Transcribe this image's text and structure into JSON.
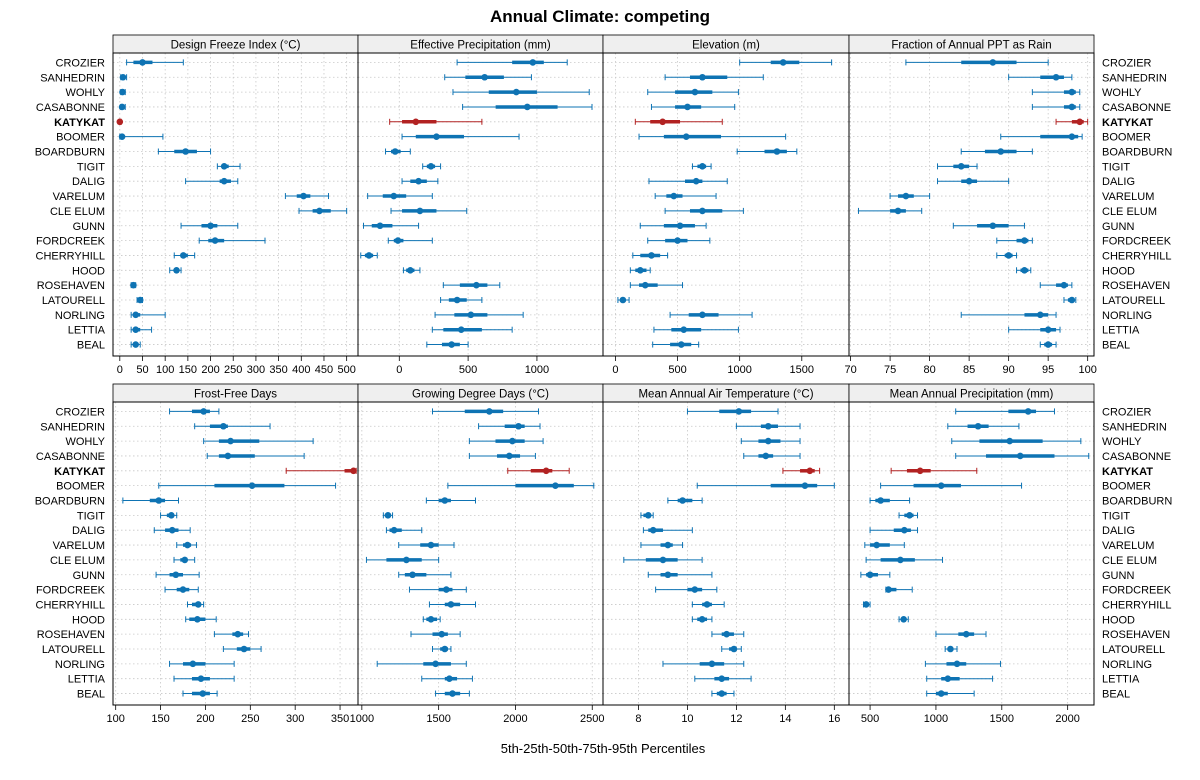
{
  "title": "Annual Climate: competing",
  "xlabel": "5th-25th-50th-75th-95th Percentiles",
  "colors": {
    "normal": "#0e73b3",
    "highlight": "#b22222",
    "strip": "#efefef",
    "grid": "#c8c8c8"
  },
  "series": [
    "CROZIER",
    "SANHEDRIN",
    "WOHLY",
    "CASABONNE",
    "KATYKAT",
    "BOOMER",
    "BOARDBURN",
    "TIGIT",
    "DALIG",
    "VARELUM",
    "CLE ELUM",
    "GUNN",
    "FORDCREEK",
    "CHERRYHILL",
    "HOOD",
    "ROSEHAVEN",
    "LATOURELL",
    "NORLING",
    "LETTIA",
    "BEAL"
  ],
  "highlight": "KATYKAT",
  "chart_data": [
    {
      "type": "percentile-dotplot",
      "title": "Design Freeze Index (°C)",
      "xlim": [
        -15,
        525
      ],
      "ticks": [
        0,
        50,
        100,
        150,
        200,
        250,
        300,
        350,
        400,
        450,
        500
      ],
      "percentiles": [
        [
          15,
          30,
          50,
          72,
          140
        ],
        [
          2,
          4,
          7,
          10,
          15
        ],
        [
          2,
          4,
          6,
          8,
          12
        ],
        [
          2,
          3,
          5,
          8,
          12
        ],
        [
          0,
          0,
          0,
          1,
          3
        ],
        [
          0,
          2,
          5,
          10,
          95
        ],
        [
          85,
          120,
          145,
          170,
          200
        ],
        [
          215,
          225,
          230,
          240,
          265
        ],
        [
          145,
          220,
          230,
          245,
          260
        ],
        [
          365,
          390,
          405,
          420,
          460
        ],
        [
          395,
          425,
          440,
          465,
          500
        ],
        [
          135,
          180,
          200,
          215,
          260
        ],
        [
          175,
          195,
          210,
          230,
          320
        ],
        [
          120,
          135,
          140,
          150,
          165
        ],
        [
          110,
          120,
          125,
          130,
          135
        ],
        [
          25,
          27,
          30,
          32,
          35
        ],
        [
          38,
          42,
          45,
          48,
          50
        ],
        [
          25,
          30,
          35,
          45,
          100
        ],
        [
          25,
          30,
          35,
          45,
          70
        ],
        [
          25,
          30,
          35,
          38,
          45
        ]
      ]
    },
    {
      "type": "percentile-dotplot",
      "title": "Effective Precipitation (mm)",
      "xlim": [
        -300,
        1480
      ],
      "ticks": [
        0,
        500,
        1000
      ],
      "percentiles": [
        [
          420,
          820,
          970,
          1050,
          1220
        ],
        [
          330,
          480,
          620,
          760,
          960
        ],
        [
          390,
          650,
          850,
          1000,
          1380
        ],
        [
          460,
          700,
          930,
          1150,
          1400
        ],
        [
          -70,
          20,
          120,
          270,
          600
        ],
        [
          20,
          120,
          270,
          470,
          870
        ],
        [
          -100,
          -60,
          -30,
          10,
          80
        ],
        [
          170,
          200,
          230,
          260,
          300
        ],
        [
          20,
          80,
          140,
          200,
          280
        ],
        [
          -230,
          -120,
          -40,
          50,
          240
        ],
        [
          -60,
          20,
          150,
          270,
          490
        ],
        [
          -260,
          -200,
          -140,
          -50,
          140
        ],
        [
          -80,
          -40,
          -10,
          30,
          240
        ],
        [
          -280,
          -250,
          -220,
          -190,
          -160
        ],
        [
          30,
          50,
          80,
          110,
          150
        ],
        [
          320,
          440,
          560,
          640,
          730
        ],
        [
          300,
          360,
          420,
          490,
          600
        ],
        [
          260,
          400,
          520,
          640,
          900
        ],
        [
          240,
          320,
          450,
          600,
          820
        ],
        [
          200,
          310,
          380,
          440,
          500
        ]
      ]
    },
    {
      "type": "percentile-dotplot",
      "title": "Elevation (m)",
      "xlim": [
        -100,
        1880
      ],
      "ticks": [
        0,
        500,
        1000,
        1500
      ],
      "percentiles": [
        [
          1000,
          1250,
          1350,
          1480,
          1740
        ],
        [
          400,
          600,
          700,
          900,
          1190
        ],
        [
          260,
          480,
          640,
          780,
          990
        ],
        [
          290,
          480,
          580,
          690,
          960
        ],
        [
          160,
          280,
          380,
          520,
          860
        ],
        [
          190,
          390,
          570,
          850,
          1370
        ],
        [
          980,
          1200,
          1300,
          1380,
          1460
        ],
        [
          620,
          660,
          700,
          730,
          770
        ],
        [
          270,
          560,
          650,
          700,
          900
        ],
        [
          320,
          410,
          470,
          540,
          810
        ],
        [
          400,
          600,
          700,
          860,
          1030
        ],
        [
          200,
          390,
          520,
          640,
          730
        ],
        [
          260,
          400,
          500,
          580,
          760
        ],
        [
          140,
          200,
          290,
          360,
          420
        ],
        [
          120,
          160,
          200,
          250,
          280
        ],
        [
          120,
          190,
          240,
          340,
          540
        ],
        [
          20,
          40,
          60,
          80,
          110
        ],
        [
          440,
          590,
          700,
          830,
          1100
        ],
        [
          310,
          450,
          550,
          690,
          990
        ],
        [
          300,
          440,
          530,
          610,
          670
        ]
      ]
    },
    {
      "type": "percentile-dotplot",
      "title": "Fraction of Annual PPT as Rain",
      "xlim": [
        69.8,
        100.8
      ],
      "ticks": [
        70,
        75,
        80,
        85,
        90,
        95,
        100
      ],
      "percentiles": [
        [
          77,
          84,
          88,
          91,
          95
        ],
        [
          90,
          94,
          96,
          97,
          98
        ],
        [
          93,
          97,
          98,
          98.5,
          99
        ],
        [
          93,
          97,
          98,
          98.5,
          99
        ],
        [
          96,
          98,
          99,
          99.5,
          100
        ],
        [
          89,
          94,
          98,
          98.8,
          99.3
        ],
        [
          84,
          87,
          89,
          91,
          93
        ],
        [
          81,
          83,
          84,
          85,
          86
        ],
        [
          81,
          84,
          85,
          86,
          90
        ],
        [
          75,
          76,
          77,
          78,
          80
        ],
        [
          71,
          75,
          76,
          77,
          79
        ],
        [
          83,
          86,
          88,
          90,
          92
        ],
        [
          88.5,
          91,
          92,
          92.5,
          93
        ],
        [
          88.5,
          89.5,
          90,
          90.5,
          91
        ],
        [
          91,
          91.5,
          92,
          92.5,
          92.8
        ],
        [
          94,
          96,
          97,
          97.5,
          98
        ],
        [
          97,
          97.5,
          98,
          98.3,
          98.5
        ],
        [
          84,
          92,
          94,
          95,
          96
        ],
        [
          90,
          94,
          95,
          96,
          96.5
        ],
        [
          94,
          94.5,
          95,
          95.5,
          96
        ]
      ]
    },
    {
      "type": "percentile-dotplot",
      "title": "Frost-Free Days",
      "xlim": [
        97,
        370
      ],
      "ticks": [
        100,
        150,
        200,
        250,
        300,
        350
      ],
      "percentiles": [
        [
          160,
          185,
          198,
          205,
          215
        ],
        [
          188,
          205,
          220,
          225,
          272
        ],
        [
          198,
          215,
          228,
          260,
          320
        ],
        [
          202,
          215,
          225,
          255,
          310
        ],
        [
          290,
          355,
          365,
          367,
          368
        ],
        [
          148,
          210,
          252,
          288,
          345
        ],
        [
          108,
          138,
          148,
          155,
          170
        ],
        [
          150,
          157,
          162,
          165,
          168
        ],
        [
          143,
          155,
          163,
          170,
          183
        ],
        [
          168,
          175,
          180,
          184,
          190
        ],
        [
          165,
          172,
          177,
          180,
          188
        ],
        [
          145,
          160,
          167,
          175,
          193
        ],
        [
          155,
          168,
          175,
          182,
          192
        ],
        [
          180,
          185,
          192,
          195,
          198
        ],
        [
          178,
          182,
          191,
          200,
          212
        ],
        [
          210,
          230,
          236,
          242,
          248
        ],
        [
          220,
          235,
          243,
          250,
          262
        ],
        [
          160,
          175,
          186,
          200,
          232
        ],
        [
          165,
          185,
          195,
          205,
          232
        ],
        [
          175,
          185,
          197,
          205,
          213
        ]
      ]
    },
    {
      "type": "percentile-dotplot",
      "title": "Growing Degree Days (°C)",
      "xlim": [
        975,
        2570
      ],
      "ticks": [
        1000,
        1500,
        2000,
        2500
      ],
      "percentiles": [
        [
          1460,
          1670,
          1830,
          1920,
          2150
        ],
        [
          1760,
          1930,
          2020,
          2060,
          2160
        ],
        [
          1700,
          1870,
          1980,
          2060,
          2180
        ],
        [
          1700,
          1880,
          1960,
          2030,
          2130
        ],
        [
          1950,
          2100,
          2200,
          2240,
          2350
        ],
        [
          1560,
          2000,
          2260,
          2380,
          2510
        ],
        [
          1420,
          1500,
          1540,
          1580,
          1740
        ],
        [
          1140,
          1150,
          1170,
          1190,
          1200
        ],
        [
          1160,
          1180,
          1210,
          1260,
          1390
        ],
        [
          1240,
          1380,
          1450,
          1500,
          1600
        ],
        [
          1030,
          1160,
          1290,
          1390,
          1500
        ],
        [
          1240,
          1280,
          1330,
          1420,
          1580
        ],
        [
          1310,
          1500,
          1550,
          1590,
          1680
        ],
        [
          1440,
          1540,
          1580,
          1640,
          1740
        ],
        [
          1400,
          1420,
          1450,
          1490,
          1510
        ],
        [
          1320,
          1460,
          1520,
          1560,
          1640
        ],
        [
          1460,
          1510,
          1540,
          1560,
          1580
        ],
        [
          1100,
          1400,
          1480,
          1580,
          1680
        ],
        [
          1390,
          1540,
          1570,
          1620,
          1720
        ],
        [
          1480,
          1540,
          1590,
          1640,
          1700
        ]
      ]
    },
    {
      "type": "percentile-dotplot",
      "title": "Mean Annual Air Temperature (°C)",
      "xlim": [
        6.55,
        16.6
      ],
      "ticks": [
        8,
        10,
        12,
        14,
        16
      ],
      "percentiles": [
        [
          10,
          11.3,
          12.1,
          12.6,
          13.7
        ],
        [
          12,
          13,
          13.3,
          13.7,
          14.6
        ],
        [
          12.2,
          12.9,
          13.3,
          13.8,
          14.6
        ],
        [
          12.3,
          12.9,
          13.2,
          13.5,
          14.6
        ],
        [
          13.9,
          14.6,
          15,
          15.2,
          15.4
        ],
        [
          10.4,
          13.4,
          14.8,
          15.3,
          16
        ],
        [
          9.2,
          9.6,
          9.8,
          10.2,
          10.6
        ],
        [
          8.1,
          8.2,
          8.4,
          8.5,
          8.6
        ],
        [
          8.2,
          8.4,
          8.6,
          9.0,
          10.2
        ],
        [
          8.1,
          8.9,
          9.2,
          9.4,
          9.8
        ],
        [
          7.4,
          8.3,
          9.0,
          9.6,
          10.6
        ],
        [
          8.4,
          8.9,
          9.2,
          9.6,
          11.0
        ],
        [
          8.7,
          10,
          10.3,
          10.6,
          11.2
        ],
        [
          10.2,
          10.6,
          10.8,
          11.0,
          11.5
        ],
        [
          10.2,
          10.4,
          10.6,
          10.8,
          11.0
        ],
        [
          11.0,
          11.4,
          11.6,
          11.9,
          12.3
        ],
        [
          11.4,
          11.7,
          11.9,
          12.0,
          12.2
        ],
        [
          9,
          10.5,
          11.0,
          11.5,
          12.3
        ],
        [
          10.3,
          11.1,
          11.4,
          11.7,
          12.6
        ],
        [
          11.0,
          11.2,
          11.4,
          11.6,
          11.9
        ]
      ]
    },
    {
      "type": "percentile-dotplot",
      "title": "Mean Annual Precipitation (mm)",
      "xlim": [
        340,
        2200
      ],
      "ticks": [
        500,
        1000,
        1500,
        2000
      ],
      "percentiles": [
        [
          1150,
          1550,
          1700,
          1760,
          1900
        ],
        [
          1090,
          1240,
          1320,
          1400,
          1630
        ],
        [
          1120,
          1330,
          1560,
          1810,
          2100
        ],
        [
          1150,
          1380,
          1640,
          1900,
          2160
        ],
        [
          660,
          780,
          880,
          960,
          1310
        ],
        [
          580,
          830,
          1040,
          1190,
          1650
        ],
        [
          500,
          540,
          580,
          650,
          800
        ],
        [
          720,
          760,
          800,
          830,
          860
        ],
        [
          500,
          680,
          760,
          810,
          860
        ],
        [
          460,
          500,
          550,
          650,
          760
        ],
        [
          470,
          580,
          730,
          840,
          1050
        ],
        [
          430,
          470,
          500,
          560,
          650
        ],
        [
          620,
          630,
          640,
          700,
          820
        ],
        [
          450,
          460,
          470,
          480,
          500
        ],
        [
          720,
          740,
          755,
          770,
          790
        ],
        [
          1000,
          1170,
          1230,
          1290,
          1380
        ],
        [
          1070,
          1090,
          1110,
          1130,
          1160
        ],
        [
          920,
          1080,
          1160,
          1230,
          1490
        ],
        [
          930,
          1040,
          1090,
          1180,
          1430
        ],
        [
          930,
          1000,
          1040,
          1090,
          1290
        ]
      ]
    }
  ]
}
